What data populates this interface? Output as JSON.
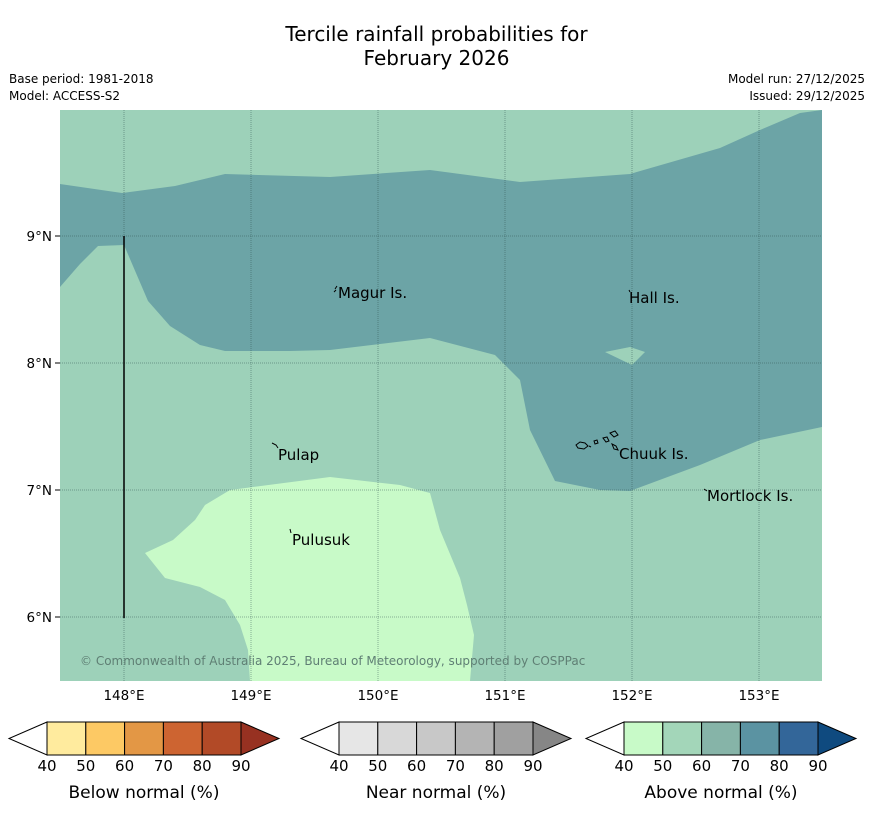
{
  "title_line1": "Tercile rainfall probabilities for",
  "title_line2": "February 2026",
  "meta": {
    "base_period": "Base period: 1981-2018",
    "model": "Model: ACCESS-S2",
    "model_run": "Model run: 27/12/2025",
    "issued": "Issued: 29/12/2025"
  },
  "map": {
    "lat_labels": [
      "9°N",
      "8°N",
      "7°N",
      "6°N"
    ],
    "lon_labels": [
      "148°E",
      "149°E",
      "150°E",
      "151°E",
      "152°E",
      "153°E"
    ],
    "places": [
      {
        "name": "Magur Is."
      },
      {
        "name": "Hall Is."
      },
      {
        "name": "Pulap"
      },
      {
        "name": "Chuuk Is."
      },
      {
        "name": "Mortlock Is."
      },
      {
        "name": "Pulusuk"
      }
    ],
    "copyright": "© Commonwealth of Australia 2025, Bureau of Meteorology, supported by COSPPac",
    "colors": {
      "above_50": "#9dd1b9",
      "above_60_70": "#6ca4a6",
      "above_40": "#c8fac8"
    }
  },
  "legends": [
    {
      "title": "Below normal (%)",
      "ticks": [
        "40",
        "50",
        "60",
        "70",
        "80",
        "90"
      ],
      "colors": [
        "#ffffff",
        "#ffeb9e",
        "#fdc964",
        "#e39745",
        "#cd6431",
        "#b24a27",
        "#973121"
      ]
    },
    {
      "title": "Near normal (%)",
      "ticks": [
        "40",
        "50",
        "60",
        "70",
        "80",
        "90"
      ],
      "colors": [
        "#ffffff",
        "#e6e6e6",
        "#d8d8d8",
        "#c8c8c8",
        "#b4b4b4",
        "#a0a0a0",
        "#868686"
      ]
    },
    {
      "title": "Above normal (%)",
      "ticks": [
        "40",
        "50",
        "60",
        "70",
        "80",
        "90"
      ],
      "colors": [
        "#ffffff",
        "#c8fac8",
        "#a3d6b9",
        "#86b4a8",
        "#5b93a2",
        "#336699",
        "#0f4a7f"
      ]
    }
  ]
}
